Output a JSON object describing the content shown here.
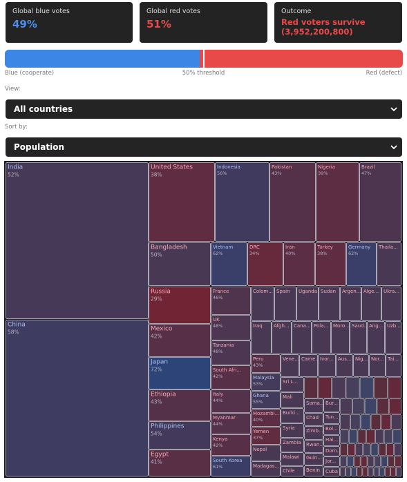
{
  "header": {
    "cards": [
      {
        "label": "Global blue votes",
        "value": {
          "value": 49,
          "label": "49%"
        }
      },
      {
        "label": "Global red votes",
        "value": {
          "value": 51,
          "label": "51%"
        }
      },
      {
        "label": "Outcome",
        "value": "Red voters survive",
        "detail": "(3,952,200,800)"
      }
    ]
  },
  "bar": {
    "left": "Blue (cooperate)",
    "middle": "50% threshold",
    "right": "Red (defect)"
  },
  "view": {
    "label": "View:",
    "selected": "All countries"
  },
  "sort": {
    "label": "Sort by:",
    "selected": "Population"
  },
  "treemap": {
    "cells": [
      {
        "name": "India",
        "pct": "52%"
      },
      {
        "name": "China",
        "pct": "58%"
      },
      {
        "name": "United States",
        "pct": "38%"
      },
      {
        "name": "Indonesia",
        "pct": "56%"
      },
      {
        "name": "Pakistan",
        "pct": "43%"
      },
      {
        "name": "Nigeria",
        "pct": "39%"
      },
      {
        "name": "Brazil",
        "pct": "47%"
      },
      {
        "name": "Bangladesh",
        "pct": "50%"
      },
      {
        "name": "Vietnam",
        "pct": "62%"
      },
      {
        "name": "DRC",
        "pct": "34%"
      },
      {
        "name": "Iran",
        "pct": "40%"
      },
      {
        "name": "Turkey",
        "pct": "38%"
      },
      {
        "name": "Germany",
        "pct": "62%"
      },
      {
        "name": "Thaila..."
      },
      {
        "name": "Russia",
        "pct": "29%"
      },
      {
        "name": "Mexico",
        "pct": "42%"
      },
      {
        "name": "Japan",
        "pct": "72%"
      },
      {
        "name": "Ethiopia",
        "pct": "43%"
      },
      {
        "name": "Philippines",
        "pct": "54%"
      },
      {
        "name": "Egypt",
        "pct": "41%"
      },
      {
        "name": "France",
        "pct": "46%"
      },
      {
        "name": "UK",
        "pct": "48%"
      },
      {
        "name": "Tanzania",
        "pct": "48%"
      },
      {
        "name": "South Afri...",
        "pct": "42%"
      },
      {
        "name": "Italy",
        "pct": "44%"
      },
      {
        "name": "Myanmar",
        "pct": "44%"
      },
      {
        "name": "Kenya",
        "pct": "42%"
      },
      {
        "name": "South Korea",
        "pct": "61%"
      },
      {
        "name": "Colom..."
      },
      {
        "name": "Spain"
      },
      {
        "name": "Uganda"
      },
      {
        "name": "Sudan"
      },
      {
        "name": "Argen..."
      },
      {
        "name": "Alge..."
      },
      {
        "name": "Ukra..."
      },
      {
        "name": "Iraq"
      },
      {
        "name": "Afgh..."
      },
      {
        "name": "Cana..."
      },
      {
        "name": "Pola..."
      },
      {
        "name": "Moro..."
      },
      {
        "name": "Saud..."
      },
      {
        "name": "Ang..."
      },
      {
        "name": "Uzb..."
      },
      {
        "name": "Peru",
        "pct": "43%"
      },
      {
        "name": "Vene..."
      },
      {
        "name": "Came..."
      },
      {
        "name": "Ivor..."
      },
      {
        "name": "Aus..."
      },
      {
        "name": "Nig..."
      },
      {
        "name": "Nor..."
      },
      {
        "name": "Tai..."
      },
      {
        "name": "Malaysia",
        "pct": "53%"
      },
      {
        "name": "Ghana",
        "pct": "55%"
      },
      {
        "name": "Mozambi...",
        "pct": "40%"
      },
      {
        "name": "Yemen",
        "pct": "37%"
      },
      {
        "name": "Nepal"
      },
      {
        "name": "Madagas..."
      },
      {
        "name": "Sri L..."
      },
      {
        "name": "Mali"
      },
      {
        "name": "Burki..."
      },
      {
        "name": "Syria"
      },
      {
        "name": "Zambia"
      },
      {
        "name": "Malawi"
      },
      {
        "name": "Chile"
      },
      {
        "name": "Soma..."
      },
      {
        "name": "Chad"
      },
      {
        "name": "Zimb..."
      },
      {
        "name": "Rwan..."
      },
      {
        "name": "Guin..."
      },
      {
        "name": "Benin"
      },
      {
        "name": "Bur..."
      },
      {
        "name": "Tun..."
      },
      {
        "name": "Bol..."
      },
      {
        "name": "Hai..."
      },
      {
        "name": "Dom..."
      },
      {
        "name": "Jor..."
      },
      {
        "name": "Cuba"
      }
    ]
  }
}
